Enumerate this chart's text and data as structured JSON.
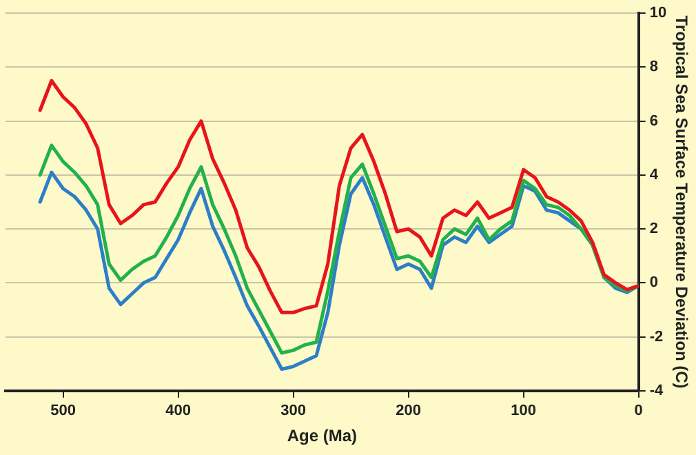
{
  "chart_data": {
    "type": "line",
    "xlabel": "Age (Ma)",
    "ylabel": "Tropical Sea Surface Temperature Deviation (C)",
    "x": [
      520,
      510,
      500,
      490,
      480,
      470,
      460,
      450,
      440,
      430,
      420,
      410,
      400,
      390,
      380,
      370,
      360,
      350,
      340,
      330,
      320,
      310,
      300,
      290,
      280,
      270,
      260,
      250,
      240,
      230,
      220,
      210,
      200,
      190,
      180,
      170,
      160,
      150,
      140,
      130,
      120,
      110,
      100,
      90,
      80,
      70,
      60,
      50,
      40,
      30,
      20,
      10,
      0
    ],
    "series": [
      {
        "color": "#e8141c",
        "values": [
          6.4,
          7.5,
          6.9,
          6.5,
          5.9,
          5.0,
          2.9,
          2.2,
          2.5,
          2.9,
          3.0,
          3.7,
          4.3,
          5.3,
          6.0,
          4.6,
          3.7,
          2.7,
          1.3,
          0.6,
          -0.3,
          -1.1,
          -1.1,
          -0.95,
          -0.85,
          0.7,
          3.6,
          5.0,
          5.5,
          4.5,
          3.3,
          1.9,
          2.0,
          1.7,
          1.0,
          2.4,
          2.7,
          2.5,
          3.0,
          2.4,
          2.6,
          2.8,
          4.2,
          3.9,
          3.2,
          3.0,
          2.7,
          2.3,
          1.5,
          0.3,
          0.0,
          -0.25,
          -0.1
        ]
      },
      {
        "color": "#22b14c",
        "values": [
          4.0,
          5.1,
          4.5,
          4.1,
          3.6,
          2.9,
          0.7,
          0.1,
          0.5,
          0.8,
          1.0,
          1.7,
          2.5,
          3.5,
          4.3,
          2.9,
          2.0,
          1.0,
          -0.2,
          -1.0,
          -1.8,
          -2.6,
          -2.5,
          -2.3,
          -2.2,
          -0.3,
          1.9,
          3.9,
          4.4,
          3.3,
          2.1,
          0.9,
          1.0,
          0.8,
          0.2,
          1.6,
          2.0,
          1.8,
          2.4,
          1.6,
          2.0,
          2.3,
          3.8,
          3.5,
          2.9,
          2.8,
          2.5,
          2.0,
          1.4,
          0.2,
          -0.1,
          -0.3,
          -0.1
        ]
      },
      {
        "color": "#2c7fc7",
        "values": [
          3.0,
          4.1,
          3.5,
          3.2,
          2.7,
          2.0,
          -0.2,
          -0.8,
          -0.4,
          0.0,
          0.2,
          0.9,
          1.6,
          2.6,
          3.5,
          2.1,
          1.2,
          0.2,
          -0.85,
          -1.6,
          -2.4,
          -3.2,
          -3.1,
          -2.9,
          -2.7,
          -1.1,
          1.4,
          3.3,
          3.9,
          2.9,
          1.7,
          0.5,
          0.7,
          0.5,
          -0.2,
          1.4,
          1.7,
          1.5,
          2.1,
          1.5,
          1.8,
          2.1,
          3.6,
          3.4,
          2.7,
          2.6,
          2.3,
          2.0,
          1.4,
          0.2,
          -0.2,
          -0.35,
          -0.1
        ]
      }
    ],
    "xlim": [
      550,
      0
    ],
    "xticks": [
      500,
      400,
      300,
      200,
      100,
      0
    ],
    "ylim": [
      -4,
      10
    ],
    "yticks": [
      -4,
      -2,
      0,
      2,
      4,
      6,
      8,
      10
    ],
    "grid": "y",
    "legend": false,
    "marker": "none",
    "line_style": "solid"
  }
}
